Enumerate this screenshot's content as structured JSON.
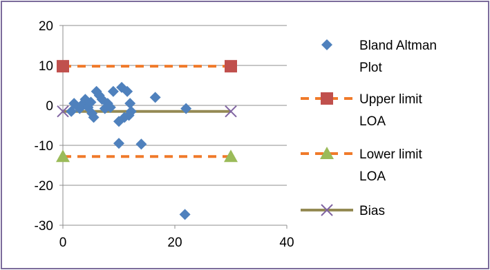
{
  "chart_data": {
    "type": "scatter",
    "title": "",
    "xlabel": "",
    "ylabel": "",
    "xlim": [
      0,
      40
    ],
    "ylim": [
      -30,
      20
    ],
    "x_ticks": [
      "0",
      "20",
      "40"
    ],
    "y_ticks": [
      "20",
      "10",
      "0",
      "-10",
      "-20",
      "-30"
    ],
    "x_tick_values": [
      0,
      20,
      40
    ],
    "y_tick_values": [
      20,
      10,
      0,
      -10,
      -20,
      -30
    ],
    "grid": "horizontal",
    "legend_position": "right",
    "series": [
      {
        "name": "Bland Altman Plot",
        "label_lines": [
          "Bland Altman",
          "Plot"
        ],
        "marker": "diamond",
        "color": "#4f81bd",
        "points": [
          [
            1.5,
            -1.5
          ],
          [
            2,
            0.5
          ],
          [
            3,
            -0.8
          ],
          [
            3.5,
            0.3
          ],
          [
            4,
            1.5
          ],
          [
            4.5,
            -0.5
          ],
          [
            5,
            0.8
          ],
          [
            5.2,
            -2
          ],
          [
            5.5,
            -3
          ],
          [
            6,
            3.5
          ],
          [
            6.5,
            2.5
          ],
          [
            7,
            1.5
          ],
          [
            7.5,
            -0.8
          ],
          [
            8,
            0.5
          ],
          [
            8.5,
            -0.5
          ],
          [
            9,
            3.5
          ],
          [
            10,
            -4
          ],
          [
            10.5,
            4.5
          ],
          [
            11,
            -3
          ],
          [
            11.5,
            3.5
          ],
          [
            11.8,
            -2.5
          ],
          [
            12,
            0.5
          ],
          [
            12.2,
            -1.5
          ],
          [
            10,
            -9.5
          ],
          [
            14,
            -9.7
          ],
          [
            16.5,
            2
          ],
          [
            22,
            -0.8
          ],
          [
            21.8,
            -27.3
          ]
        ]
      },
      {
        "name": "Upper limit LOA",
        "label_lines": [
          "Upper limit",
          "LOA"
        ],
        "marker": "square",
        "line_style": "dashed",
        "color": "#c0504d",
        "line_color": "#f07a2a",
        "points": [
          [
            0,
            9.8
          ],
          [
            30,
            9.8
          ]
        ]
      },
      {
        "name": "Lower limit LOA",
        "label_lines": [
          "Lower limit",
          "LOA"
        ],
        "marker": "triangle",
        "line_style": "dashed",
        "color": "#9bbb59",
        "line_color": "#f07a2a",
        "points": [
          [
            0,
            -12.8
          ],
          [
            30,
            -12.8
          ]
        ]
      },
      {
        "name": "Bias",
        "label_lines": [
          "Bias"
        ],
        "marker": "x",
        "line_style": "solid",
        "color": "#8064a2",
        "line_color": "#948a54",
        "points": [
          [
            0,
            -1.5
          ],
          [
            30,
            -1.5
          ]
        ]
      }
    ]
  }
}
